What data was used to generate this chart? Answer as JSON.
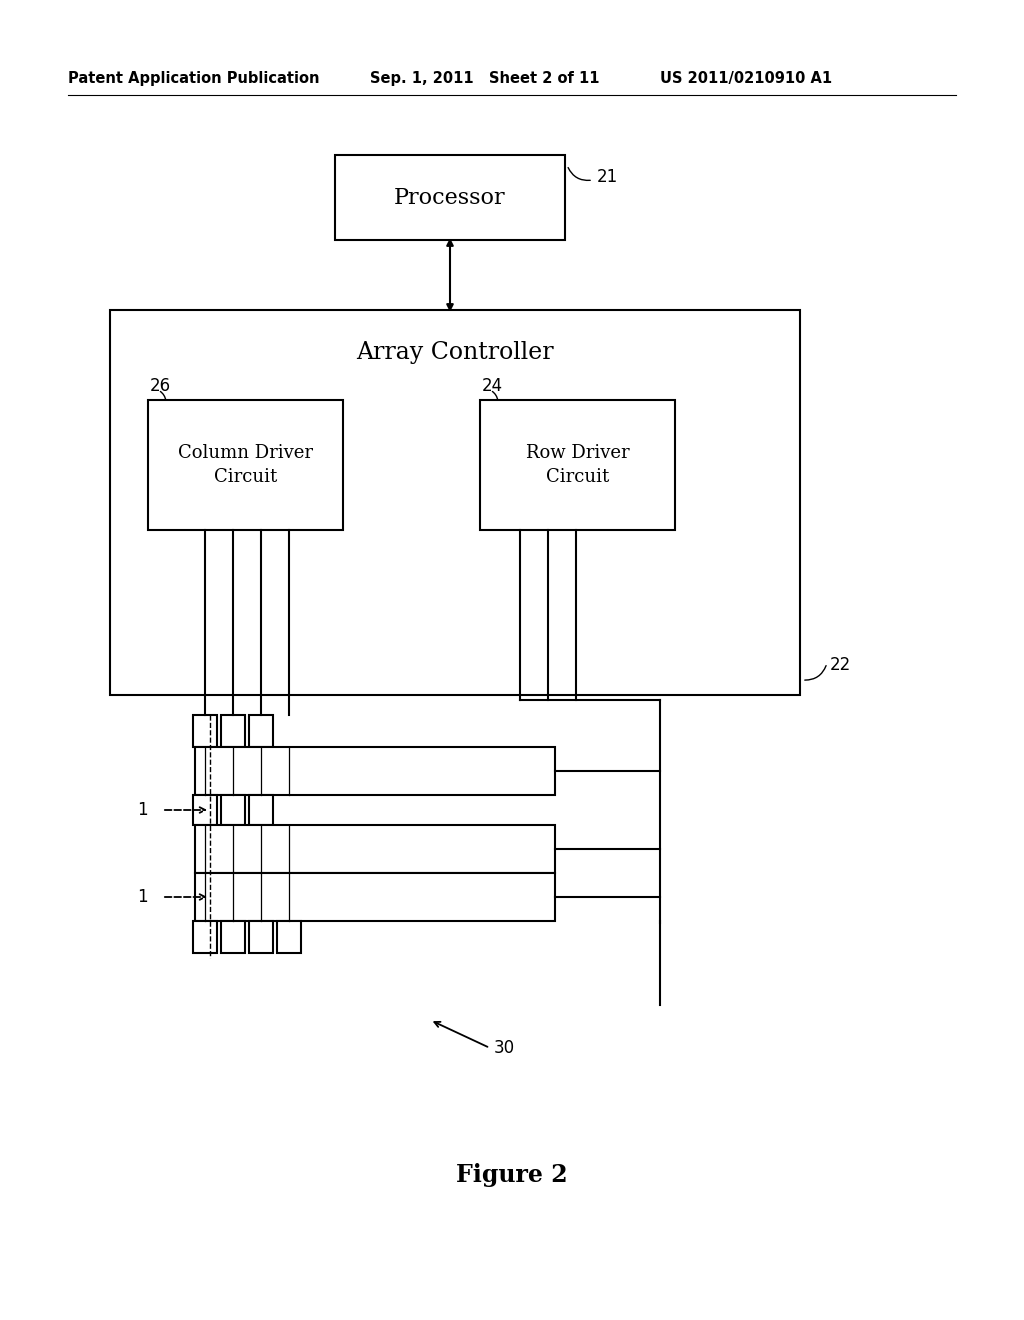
{
  "bg_color": "#ffffff",
  "header_left": "Patent Application Publication",
  "header_mid": "Sep. 1, 2011   Sheet 2 of 11",
  "header_right": "US 2011/0210910 A1",
  "figure_label": "Figure 2",
  "processor_label": "Processor",
  "processor_ref": "21",
  "array_ctrl_label": "Array Controller",
  "array_ctrl_ref": "22",
  "col_driver_label": "Column Driver\nCircuit",
  "col_driver_ref": "26",
  "row_driver_label": "Row Driver\nCircuit",
  "row_driver_ref": "24",
  "display_ref": "30",
  "label_1": "1"
}
